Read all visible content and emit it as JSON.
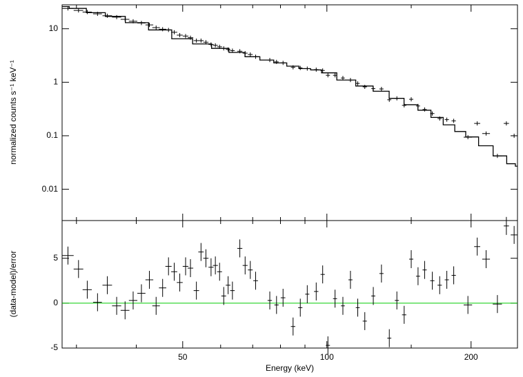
{
  "chart_data": [
    {
      "type": "spectrum",
      "ylabel": "normalized counts s⁻¹ keV⁻¹",
      "log_y": true,
      "ylim": [
        0.0026,
        28
      ],
      "yticks": [
        0.01,
        0.1,
        1,
        10
      ],
      "color": "#000000",
      "x": [
        28.8,
        30.3,
        31.6,
        33.2,
        34.8,
        36.4,
        37.9,
        39.4,
        41.0,
        42.6,
        44.0,
        45.4,
        46.7,
        48.0,
        49.3,
        50.7,
        51.9,
        53.4,
        54.6,
        55.9,
        57.3,
        58.5,
        59.7,
        60.9,
        62.2,
        63.5,
        65.8,
        67.5,
        69.2,
        71.0,
        76.0,
        78.5,
        81.0,
        85.0,
        88.0,
        91.0,
        95.0,
        98.0,
        100.5,
        104.0,
        108.0,
        112.0,
        116.0,
        120.0,
        125.0,
        130.0,
        135.0,
        140.0,
        145.0,
        150.0,
        155.0,
        160.0,
        166.0,
        172.0,
        178.0,
        184.0,
        197.0,
        206.0,
        215.0,
        227.0,
        237.0,
        246.0
      ],
      "xerr": [
        0.8,
        0.7,
        0.7,
        0.7,
        0.8,
        0.8,
        0.8,
        0.8,
        0.8,
        0.8,
        0.8,
        0.8,
        0.7,
        0.7,
        0.7,
        0.7,
        0.7,
        0.7,
        0.7,
        0.7,
        0.7,
        0.7,
        0.7,
        0.7,
        0.7,
        0.7,
        0.8,
        0.8,
        0.8,
        0.8,
        0.8,
        0.8,
        0.9,
        0.9,
        0.9,
        0.9,
        1.0,
        1.0,
        1.0,
        1.0,
        1.0,
        1.1,
        1.1,
        1.2,
        1.2,
        1.3,
        1.3,
        1.4,
        1.5,
        1.5,
        1.5,
        1.6,
        1.7,
        1.8,
        1.8,
        1.9,
        4.0,
        3.0,
        4.0,
        5.0,
        3.0,
        4.0
      ],
      "y": [
        24,
        22,
        20.5,
        19,
        17.5,
        16.5,
        15,
        13.8,
        12.8,
        11.8,
        10.5,
        9.8,
        9.5,
        8.6,
        7.6,
        7.3,
        6.8,
        6,
        6,
        5.6,
        5.1,
        4.9,
        4.6,
        4.3,
        4.1,
        3.9,
        3.8,
        3.5,
        3.3,
        3.0,
        2.6,
        2.4,
        2.3,
        1.9,
        1.85,
        1.8,
        1.72,
        1.66,
        1.35,
        1.35,
        1.2,
        1.1,
        0.95,
        0.82,
        0.76,
        0.75,
        0.47,
        0.5,
        0.37,
        0.48,
        0.36,
        0.31,
        0.26,
        0.21,
        0.2,
        0.19,
        0.094,
        0.17,
        0.11,
        0.042,
        0.17,
        0.1
      ],
      "model_x": [
        28,
        30,
        33,
        36,
        40,
        45,
        50,
        55,
        60,
        65,
        70,
        75,
        80,
        85,
        90,
        95,
        100,
        110,
        120,
        130,
        140,
        150,
        160,
        170,
        180,
        190,
        200,
        215,
        230,
        245,
        250
      ],
      "model_y": [
        26,
        24,
        20,
        17,
        13,
        9.5,
        6.5,
        5.2,
        4.3,
        3.6,
        3.0,
        2.6,
        2.3,
        2.0,
        1.8,
        1.7,
        1.5,
        1.1,
        0.85,
        0.68,
        0.5,
        0.38,
        0.3,
        0.22,
        0.16,
        0.12,
        0.095,
        0.065,
        0.042,
        0.03,
        0.027
      ]
    },
    {
      "type": "residuals",
      "ylabel": "(data-model)/error",
      "xlabel": "Energy (keV)",
      "log_x": true,
      "xlim": [
        28,
        250
      ],
      "xticks": [
        50,
        100,
        200
      ],
      "xminor": [
        30,
        40,
        60,
        70,
        80,
        90,
        150
      ],
      "ylim": [
        -5,
        9.2
      ],
      "yticks": [
        -5,
        0,
        5
      ],
      "color": "#000000",
      "reference_line": 0,
      "reference_color": "#00cc00",
      "yerr": 1,
      "values": [
        5.3,
        3.8,
        1.5,
        0.1,
        2.0,
        -0.3,
        -0.8,
        0.3,
        1.1,
        2.6,
        -0.3,
        1.7,
        4.1,
        3.5,
        2.3,
        4.1,
        3.9,
        1.4,
        5.7,
        5.0,
        4.0,
        4.2,
        3.5,
        0.8,
        2.0,
        1.4,
        6.1,
        4.2,
        3.7,
        2.5,
        0.3,
        -0.2,
        0.6,
        -2.6,
        -0.5,
        1.0,
        1.3,
        3.2,
        -4.7,
        0.5,
        -0.3,
        2.6,
        -0.5,
        -2.0,
        0.8,
        3.3,
        -3.9,
        0.3,
        -1.3,
        4.9,
        3.0,
        3.7,
        2.5,
        2.0,
        2.6,
        3.1,
        -0.2,
        6.3,
        4.9,
        -0.1,
        8.6,
        7.6
      ]
    }
  ]
}
